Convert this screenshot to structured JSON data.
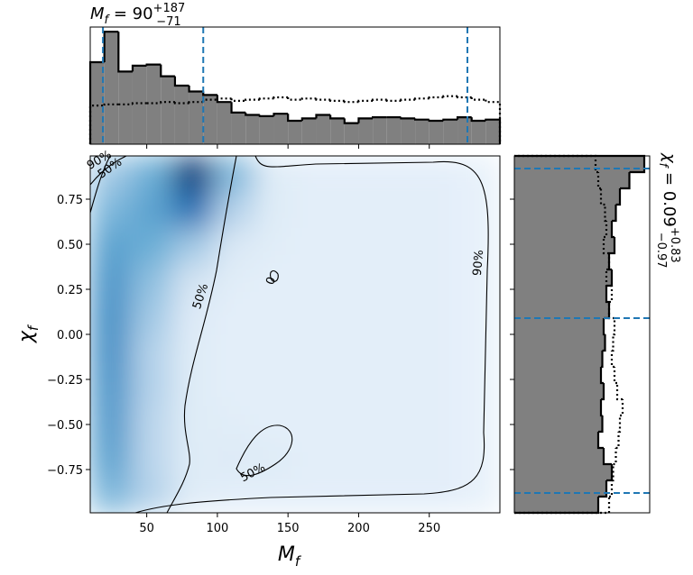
{
  "chart_data": [
    {
      "type": "histogram",
      "panel": "top",
      "title": {
        "symbol": "M",
        "sub": "f",
        "eq": " = 90",
        "sup": "+187",
        "inf": "−71"
      },
      "bins": [
        10,
        20,
        30,
        40,
        50,
        60,
        70,
        80,
        90,
        100,
        110,
        120,
        130,
        140,
        150,
        160,
        170,
        180,
        190,
        200,
        210,
        220,
        230,
        240,
        250,
        260,
        270,
        280,
        290,
        300
      ],
      "series": [
        {
          "values": [
            0.7,
            0.96,
            0.62,
            0.67,
            0.68,
            0.58,
            0.5,
            0.45,
            0.42,
            0.36,
            0.27,
            0.25,
            0.24,
            0.26,
            0.2,
            0.22,
            0.25,
            0.22,
            0.18,
            0.22,
            0.23,
            0.23,
            0.22,
            0.21,
            0.2,
            0.21,
            0.23,
            0.2,
            0.21
          ],
          "color": "#808080",
          "style": "filled"
        },
        {
          "values": [
            0.33,
            0.34,
            0.34,
            0.35,
            0.35,
            0.36,
            0.35,
            0.36,
            0.38,
            0.39,
            0.37,
            0.38,
            0.39,
            0.4,
            0.38,
            0.39,
            0.38,
            0.37,
            0.36,
            0.37,
            0.38,
            0.37,
            0.38,
            0.39,
            0.4,
            0.41,
            0.4,
            0.38,
            0.36
          ],
          "color": "#000000",
          "style": "dotted"
        }
      ],
      "xlim": [
        10,
        300
      ],
      "ylim": [
        0,
        1
      ],
      "xticks": [
        50,
        100,
        150,
        200,
        250
      ],
      "quantiles": [
        19,
        90,
        277
      ],
      "quantile_color": "#1f77b4"
    },
    {
      "type": "heatmap",
      "panel": "main",
      "xlabel": {
        "symbol": "M",
        "sub": "f"
      },
      "ylabel": {
        "symbol": "χ",
        "sub": "f"
      },
      "xbins": [
        10,
        39,
        68,
        97,
        126,
        155,
        184,
        213,
        242,
        271,
        300
      ],
      "ybins": [
        -0.99,
        -0.792,
        -0.594,
        -0.396,
        -0.198,
        0,
        0.198,
        0.396,
        0.594,
        0.792,
        0.99
      ],
      "z": [
        [
          0.45,
          0.3,
          0.12,
          0.1,
          0.1,
          0.1,
          0.1,
          0.1,
          0.1,
          0.08
        ],
        [
          0.55,
          0.28,
          0.12,
          0.13,
          0.12,
          0.1,
          0.1,
          0.1,
          0.1,
          0.08
        ],
        [
          0.58,
          0.28,
          0.12,
          0.11,
          0.1,
          0.1,
          0.1,
          0.1,
          0.1,
          0.08
        ],
        [
          0.6,
          0.3,
          0.12,
          0.1,
          0.1,
          0.1,
          0.1,
          0.1,
          0.1,
          0.08
        ],
        [
          0.62,
          0.3,
          0.12,
          0.1,
          0.1,
          0.1,
          0.1,
          0.1,
          0.1,
          0.08
        ],
        [
          0.62,
          0.35,
          0.13,
          0.1,
          0.1,
          0.1,
          0.1,
          0.1,
          0.1,
          0.08
        ],
        [
          0.6,
          0.4,
          0.18,
          0.11,
          0.1,
          0.1,
          0.1,
          0.1,
          0.1,
          0.08
        ],
        [
          0.55,
          0.5,
          0.35,
          0.15,
          0.11,
          0.1,
          0.1,
          0.1,
          0.1,
          0.08
        ],
        [
          0.45,
          0.55,
          0.75,
          0.3,
          0.12,
          0.1,
          0.1,
          0.1,
          0.1,
          0.08
        ],
        [
          0.35,
          0.5,
          0.95,
          0.45,
          0.12,
          0.1,
          0.1,
          0.1,
          0.1,
          0.08
        ]
      ],
      "colormap": [
        "#f7fbff",
        "#c6dbef",
        "#6baed6",
        "#2171b5",
        "#08306b"
      ],
      "xlim": [
        10,
        300
      ],
      "ylim": [
        -0.99,
        0.99
      ],
      "xticks": [
        50,
        100,
        150,
        200,
        250
      ],
      "yticks": [
        0.75,
        {
          "value": 0.5,
          "label": "0.50"
        },
        0.25,
        {
          "value": 0,
          "label": "0.00"
        },
        {
          "value": -0.25,
          "label": "−0.25"
        },
        {
          "value": -0.5,
          "label": "−0.50"
        },
        {
          "value": -0.75,
          "label": "−0.75"
        }
      ],
      "contour_labels": [
        "90%",
        "50%",
        "50%",
        "0",
        "90%",
        "50%"
      ]
    },
    {
      "type": "histogram",
      "panel": "right",
      "orientation": "horizontal",
      "title": {
        "symbol": "χ",
        "sub": "f",
        "eq": " = 0.09",
        "sup": "+0.83",
        "inf": "−0.97"
      },
      "bins": [
        -0.99,
        -0.9,
        -0.81,
        -0.72,
        -0.63,
        -0.54,
        -0.45,
        -0.36,
        -0.27,
        -0.18,
        -0.09,
        0,
        0.09,
        0.18,
        0.27,
        0.36,
        0.45,
        0.54,
        0.63,
        0.72,
        0.81,
        0.9,
        0.99
      ],
      "series": [
        {
          "values": [
            0.62,
            0.68,
            0.72,
            0.66,
            0.62,
            0.65,
            0.64,
            0.66,
            0.64,
            0.65,
            0.67,
            0.66,
            0.7,
            0.68,
            0.72,
            0.7,
            0.74,
            0.72,
            0.75,
            0.78,
            0.85,
            0.96
          ],
          "color": "#808080",
          "style": "filled"
        },
        {
          "values": [
            0.7,
            0.72,
            0.73,
            0.75,
            0.77,
            0.78,
            0.8,
            0.76,
            0.74,
            0.72,
            0.73,
            0.74,
            0.7,
            0.72,
            0.68,
            0.7,
            0.66,
            0.68,
            0.67,
            0.64,
            0.62,
            0.6
          ],
          "color": "#000000",
          "style": "dotted"
        }
      ],
      "xlim": [
        0,
        1
      ],
      "ylim": [
        -0.99,
        0.99
      ],
      "yticks": [
        0.75,
        0.5,
        0.25,
        0,
        -0.25,
        -0.5,
        -0.75
      ],
      "quantiles": [
        -0.88,
        0.09,
        0.92
      ],
      "quantile_color": "#1f77b4"
    }
  ]
}
